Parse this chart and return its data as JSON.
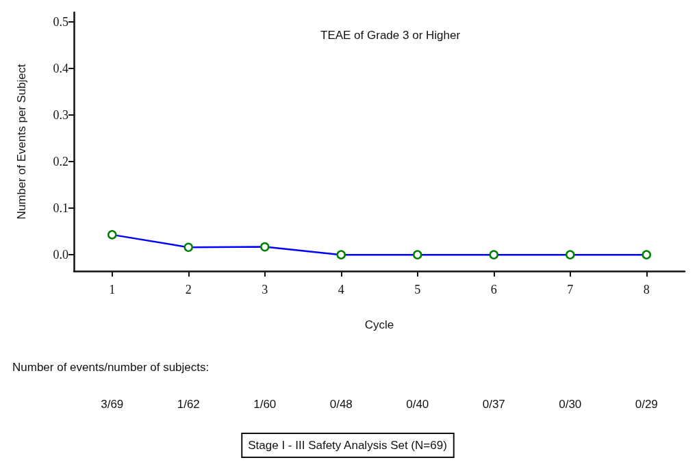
{
  "chart_data": {
    "type": "line",
    "title": "TEAE of Grade 3 or Higher",
    "xlabel": "Cycle",
    "ylabel": "Number of Events per Subject",
    "categories": [
      "1",
      "2",
      "3",
      "4",
      "5",
      "6",
      "7",
      "8"
    ],
    "series": [
      {
        "color": "#0000ff",
        "colors": [
          "#008000",
          "#008000",
          "#008000",
          "#008000",
          "#008000",
          "#008000",
          "#008000",
          "#008000"
        ],
        "values": [
          0.043,
          0.016,
          0.017,
          0,
          0,
          0,
          0,
          0
        ],
        "value_labels": [
          "3/69",
          "1/62",
          "1/60",
          "0/48",
          "0/40",
          "0/37",
          "0/30",
          "0/29"
        ]
      }
    ],
    "ylim": [
      -0.035,
      0.52
    ],
    "yticks": [
      {
        "value": 0,
        "label": "0.0"
      },
      0.1,
      0.2,
      0.3,
      0.4,
      0.5
    ],
    "marker": "circle",
    "line_style": "solid",
    "grid": false,
    "annotations": [
      "Number of events/number of subjects:",
      "Stage I - III Safety Analysis Set (N=69)"
    ]
  }
}
